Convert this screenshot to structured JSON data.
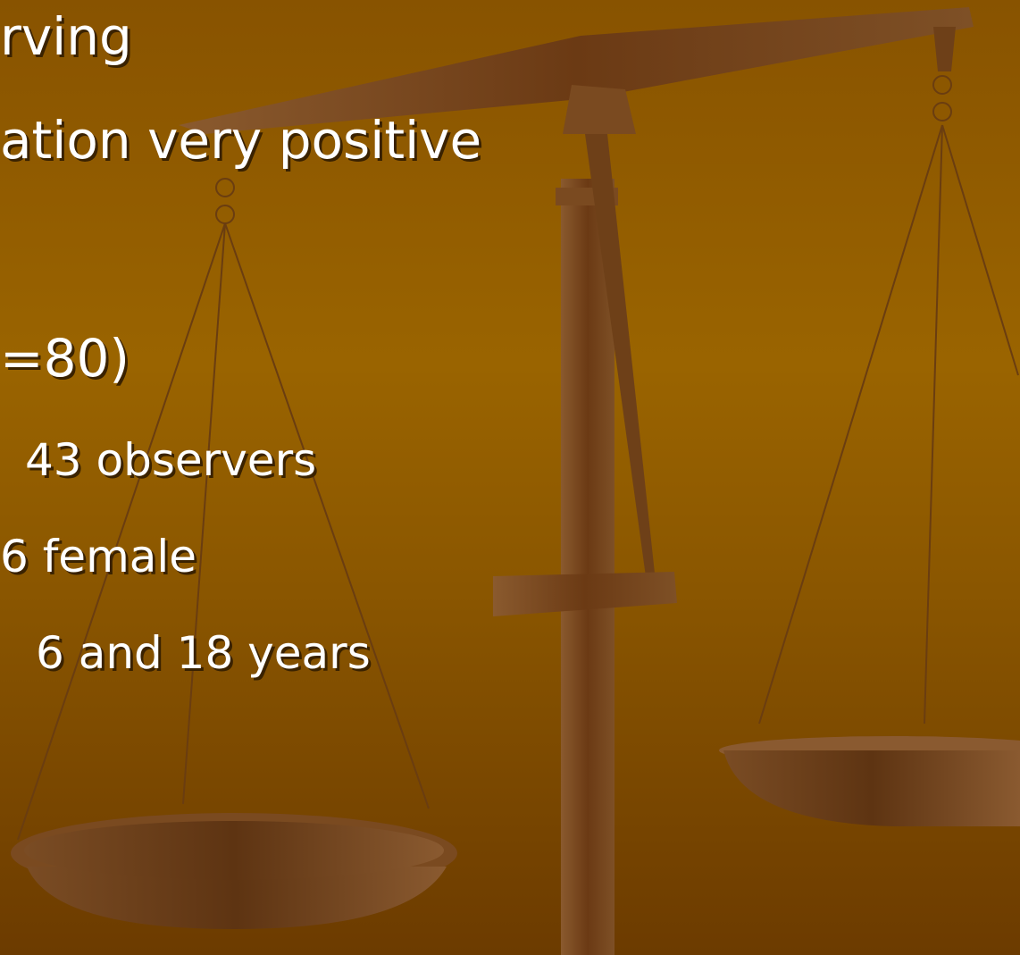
{
  "slide": {
    "lines": [
      {
        "text": "rving"
      },
      {
        "text": "ation very positive"
      },
      {
        "text": "=80)"
      },
      {
        "text": "43 observers"
      },
      {
        "text": "6 female"
      },
      {
        "text": "6 and 18 years"
      }
    ]
  }
}
